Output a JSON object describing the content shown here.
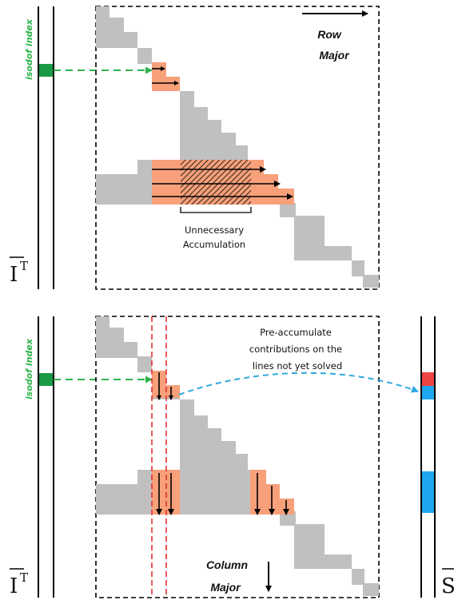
{
  "top_panel": {
    "axis_label": "isodof index",
    "direction_label_1": "Row",
    "direction_label_2": "Major",
    "annotation_1": "Unnecessary",
    "annotation_2": "Accumulation",
    "vector_label": "I",
    "vector_label_sup": "T"
  },
  "bottom_panel": {
    "axis_label": "isodof index",
    "direction_label_1": "Column",
    "direction_label_2": "Major",
    "annotation_lines": [
      "Pre-accumulate",
      "contributions on the",
      "lines not yet solved"
    ],
    "vector_label": "I",
    "vector_label_sup": "T",
    "side_vector_label": "S"
  },
  "colors": {
    "matrix_block": "#c0c0c0",
    "highlight": "#f7a07a",
    "index_marker": "#1a9a45",
    "arrow_dash_green": "#2db34a",
    "arrow_dash_blue": "#2ea8e0",
    "red_guide": "#e53030",
    "vector_red": "#ef4444",
    "vector_blue": "#1ea7f0"
  }
}
